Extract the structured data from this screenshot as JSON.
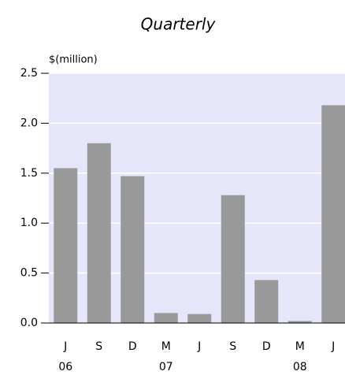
{
  "chart_data": {
    "type": "bar",
    "subtitle": "Quarterly",
    "y_label": "$(million)",
    "categories": [
      "J",
      "S",
      "D",
      "M",
      "J",
      "S",
      "D",
      "M",
      "J"
    ],
    "x_group_labels": [
      "06",
      null,
      null,
      "07",
      null,
      null,
      null,
      "08",
      null
    ],
    "values": [
      1.55,
      1.8,
      1.47,
      0.1,
      0.09,
      1.28,
      0.43,
      0.02,
      2.18
    ],
    "color": "#999999",
    "background": "#e6e6fa",
    "ylim": [
      0,
      2.5
    ],
    "yticks": [
      {
        "value": 0,
        "label": "0.0"
      },
      0.5,
      {
        "value": 1,
        "label": "1.0"
      },
      1.5,
      {
        "value": 2,
        "label": "2.0"
      },
      2.5
    ],
    "grid": true
  }
}
